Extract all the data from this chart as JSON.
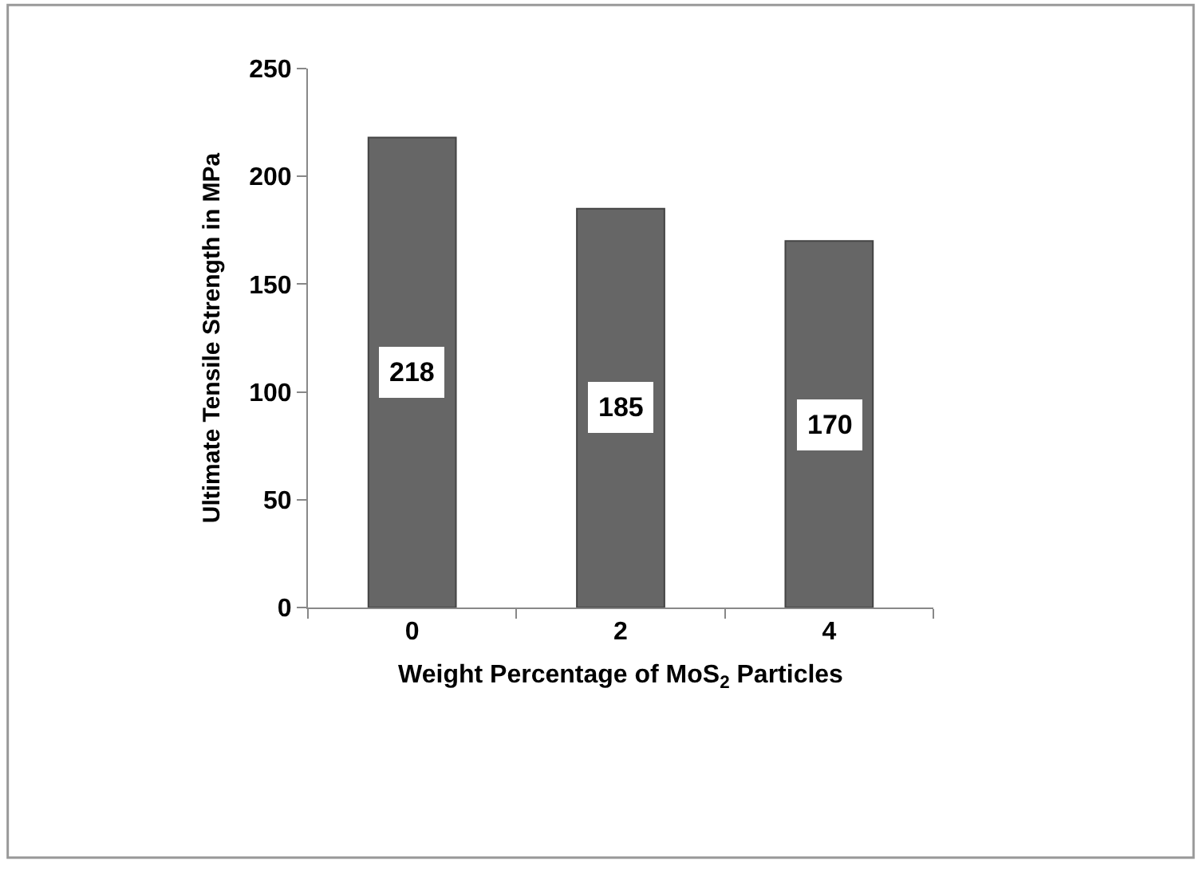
{
  "chart_data": {
    "type": "bar",
    "categories": [
      "0",
      "2",
      "4"
    ],
    "values": [
      218,
      185,
      170
    ],
    "color": "#666666",
    "xlabel": "Weight Percentage of MoS$_{2}$ Particles",
    "ylabel": "Ultimate Tensile Strength in MPa",
    "ylim": [
      0,
      250
    ],
    "yticks": [
      0,
      50,
      100,
      150,
      200,
      250
    ],
    "data_labels": true
  }
}
